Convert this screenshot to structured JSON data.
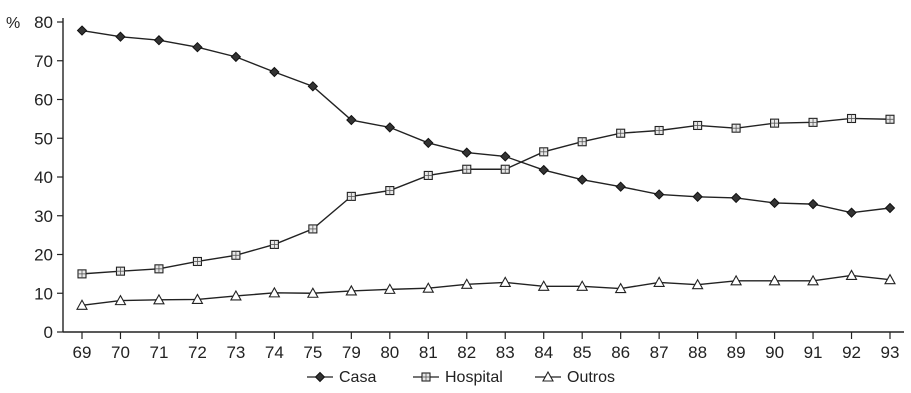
{
  "chart_data": {
    "type": "line",
    "y_unit_label": "%",
    "categories": [
      "69",
      "70",
      "71",
      "72",
      "73",
      "74",
      "75",
      "79",
      "80",
      "81",
      "82",
      "83",
      "84",
      "85",
      "86",
      "87",
      "88",
      "89",
      "90",
      "91",
      "92",
      "93"
    ],
    "ylim": [
      0,
      80
    ],
    "yticks": [
      0,
      10,
      20,
      30,
      40,
      50,
      60,
      70,
      80
    ],
    "grid": false,
    "legend_position": "bottom",
    "series": [
      {
        "name": "Casa",
        "marker": "diamond",
        "values": [
          77.8,
          76.2,
          75.3,
          73.5,
          71.0,
          67.1,
          63.4,
          54.7,
          52.8,
          48.8,
          46.3,
          45.3,
          41.8,
          39.3,
          37.5,
          35.5,
          34.9,
          34.6,
          33.3,
          33.0,
          30.8,
          32.0
        ]
      },
      {
        "name": "Hospital",
        "marker": "square",
        "values": [
          15.0,
          15.7,
          16.3,
          18.2,
          19.8,
          22.6,
          26.6,
          35.0,
          36.5,
          40.4,
          42.0,
          42.0,
          46.5,
          49.1,
          51.3,
          52.0,
          53.3,
          52.6,
          53.9,
          54.1,
          55.1,
          54.9
        ]
      },
      {
        "name": "Outros",
        "marker": "triangle",
        "values": [
          6.9,
          8.1,
          8.3,
          8.4,
          9.3,
          10.1,
          10.0,
          10.6,
          11.0,
          11.3,
          12.3,
          12.8,
          11.8,
          11.8,
          11.2,
          12.8,
          12.2,
          13.2,
          13.2,
          13.2,
          14.6,
          13.5
        ]
      }
    ]
  }
}
